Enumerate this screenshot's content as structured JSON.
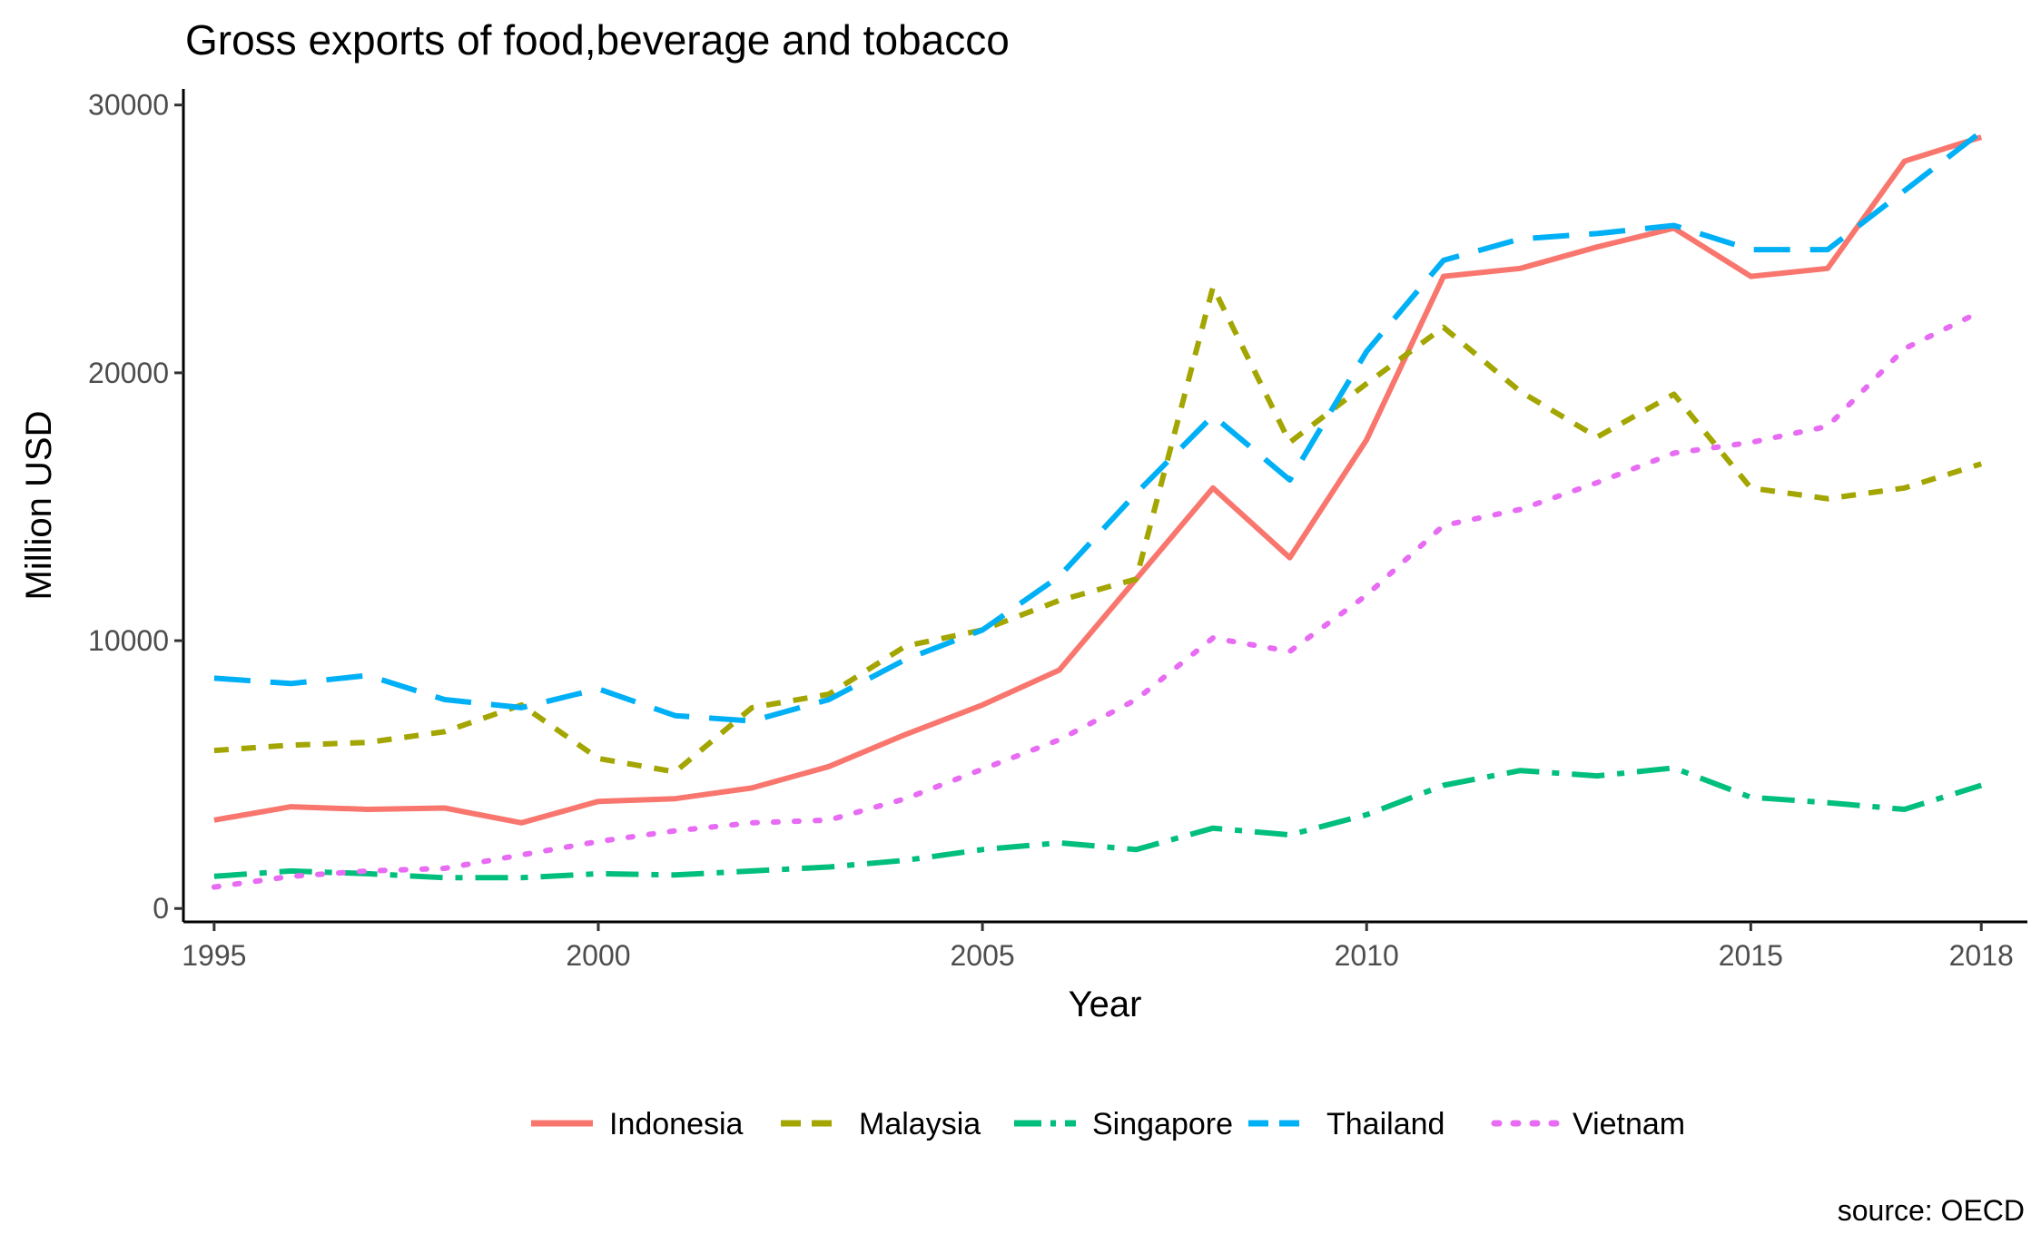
{
  "chart_data": {
    "type": "line",
    "title": "Gross exports of food,beverage and tobacco",
    "xlabel": "Year",
    "ylabel": "Million USD",
    "caption": "source: OECD",
    "x": [
      1995,
      1996,
      1997,
      1998,
      1999,
      2000,
      2001,
      2002,
      2003,
      2004,
      2005,
      2006,
      2007,
      2008,
      2009,
      2010,
      2011,
      2012,
      2013,
      2014,
      2015,
      2016,
      2017,
      2018
    ],
    "xlim": [
      1994.6,
      2018.6
    ],
    "ylim": [
      -500,
      30600
    ],
    "x_ticks": [
      "1995",
      "2000",
      "2005",
      "2010",
      "2015",
      "2018"
    ],
    "x_tick_values": [
      1995,
      2000,
      2005,
      2010,
      2015,
      2018
    ],
    "y_ticks": [
      "0",
      "10000",
      "20000",
      "30000"
    ],
    "y_tick_values": [
      0,
      10000,
      20000,
      30000
    ],
    "grid": false,
    "legend_position": "bottom",
    "series": [
      {
        "name": "Indonesia",
        "color": "#F8766D",
        "linetype": "solid",
        "values": [
          3300,
          3800,
          3700,
          3750,
          3200,
          4000,
          4100,
          4500,
          5300,
          6500,
          7600,
          8900,
          12300,
          15700,
          13100,
          17500,
          23600,
          23900,
          24700,
          25400,
          23600,
          23900,
          27900,
          28800
        ]
      },
      {
        "name": "Malaysia",
        "color": "#A3A500",
        "linetype": "dashed",
        "values": [
          5900,
          6100,
          6200,
          6600,
          7600,
          5600,
          5100,
          7500,
          8000,
          9800,
          10400,
          11500,
          12300,
          23200,
          17400,
          19600,
          21700,
          19300,
          17600,
          19200,
          15700,
          15300,
          15700,
          16600
        ]
      },
      {
        "name": "Singapore",
        "color": "#00BF7D",
        "linetype": "longdash",
        "values": [
          1200,
          1400,
          1300,
          1150,
          1150,
          1300,
          1250,
          1400,
          1550,
          1800,
          2200,
          2450,
          2200,
          3000,
          2750,
          3500,
          4600,
          5150,
          4950,
          5250,
          4150,
          3950,
          3700,
          4600
        ]
      },
      {
        "name": "Thailand",
        "color": "#00B0F6",
        "linetype": "dashed-long",
        "values": [
          8600,
          8400,
          8700,
          7800,
          7500,
          8200,
          7200,
          7000,
          7800,
          9300,
          10400,
          12400,
          15500,
          18400,
          16000,
          20800,
          24200,
          25000,
          25200,
          25500,
          24600,
          24600,
          26800,
          29000
        ]
      },
      {
        "name": "Vietnam",
        "color": "#E76BF3",
        "linetype": "dotted",
        "values": [
          800,
          1200,
          1400,
          1500,
          2000,
          2500,
          2900,
          3200,
          3300,
          4100,
          5200,
          6300,
          7800,
          10100,
          9600,
          11700,
          14300,
          14900,
          15900,
          17000,
          17400,
          18000,
          20900,
          22300
        ]
      }
    ]
  }
}
